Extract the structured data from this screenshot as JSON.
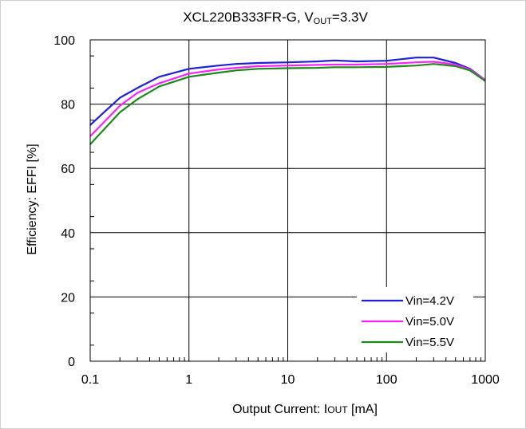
{
  "chart_data": {
    "type": "line",
    "title": "XCL220B333FR-G, V",
    "title_subscript": "OUT",
    "title_suffix": "=3.3V",
    "xlabel": "Output  Current:  I",
    "xlabel_subscript": "OUT",
    "xlabel_suffix": " [mA]",
    "ylabel": "Efficiency: EFFI [%]",
    "x_scale": "log",
    "xlim": [
      0.1,
      1000
    ],
    "ylim": [
      0,
      100
    ],
    "x_ticks": [
      0.1,
      1,
      10,
      100,
      1000
    ],
    "x_tick_labels": [
      "0.1",
      "1",
      "10",
      "100",
      "1000"
    ],
    "y_ticks": [
      0,
      20,
      40,
      60,
      80,
      100
    ],
    "y_tick_labels": [
      "0",
      "20",
      "40",
      "60",
      "80",
      "100"
    ],
    "grid": true,
    "legend_position": "bottom-right",
    "series": [
      {
        "name": "Vin=4.2V",
        "color": "#1f1fd6",
        "x": [
          0.1,
          0.2,
          0.3,
          0.5,
          1,
          2,
          3,
          5,
          10,
          20,
          30,
          50,
          100,
          200,
          300,
          500,
          700,
          1000
        ],
        "y": [
          73.5,
          82,
          85,
          88.5,
          91,
          92,
          92.5,
          92.8,
          93,
          93.3,
          93.6,
          93.3,
          93.5,
          94.5,
          94.5,
          92.8,
          91,
          87.5
        ]
      },
      {
        "name": "Vin=5.0V",
        "color": "#ff20ff",
        "x": [
          0.1,
          0.2,
          0.3,
          0.5,
          1,
          2,
          3,
          5,
          10,
          20,
          30,
          50,
          100,
          200,
          300,
          500,
          700,
          1000
        ],
        "y": [
          70,
          79.5,
          83.5,
          86.5,
          89.5,
          90.8,
          91.3,
          91.8,
          92,
          92.2,
          92.3,
          92.3,
          92.5,
          93,
          93.2,
          92.3,
          90.8,
          87.5
        ]
      },
      {
        "name": "Vin=5.5V",
        "color": "#1a8a1a",
        "x": [
          0.1,
          0.2,
          0.3,
          0.5,
          1,
          2,
          3,
          5,
          10,
          20,
          30,
          50,
          100,
          200,
          300,
          500,
          700,
          1000
        ],
        "y": [
          67.5,
          77.5,
          81.5,
          85.5,
          88.5,
          89.8,
          90.5,
          91,
          91.2,
          91.3,
          91.5,
          91.5,
          91.6,
          92,
          92.5,
          91.8,
          90.5,
          87.2
        ]
      }
    ]
  }
}
